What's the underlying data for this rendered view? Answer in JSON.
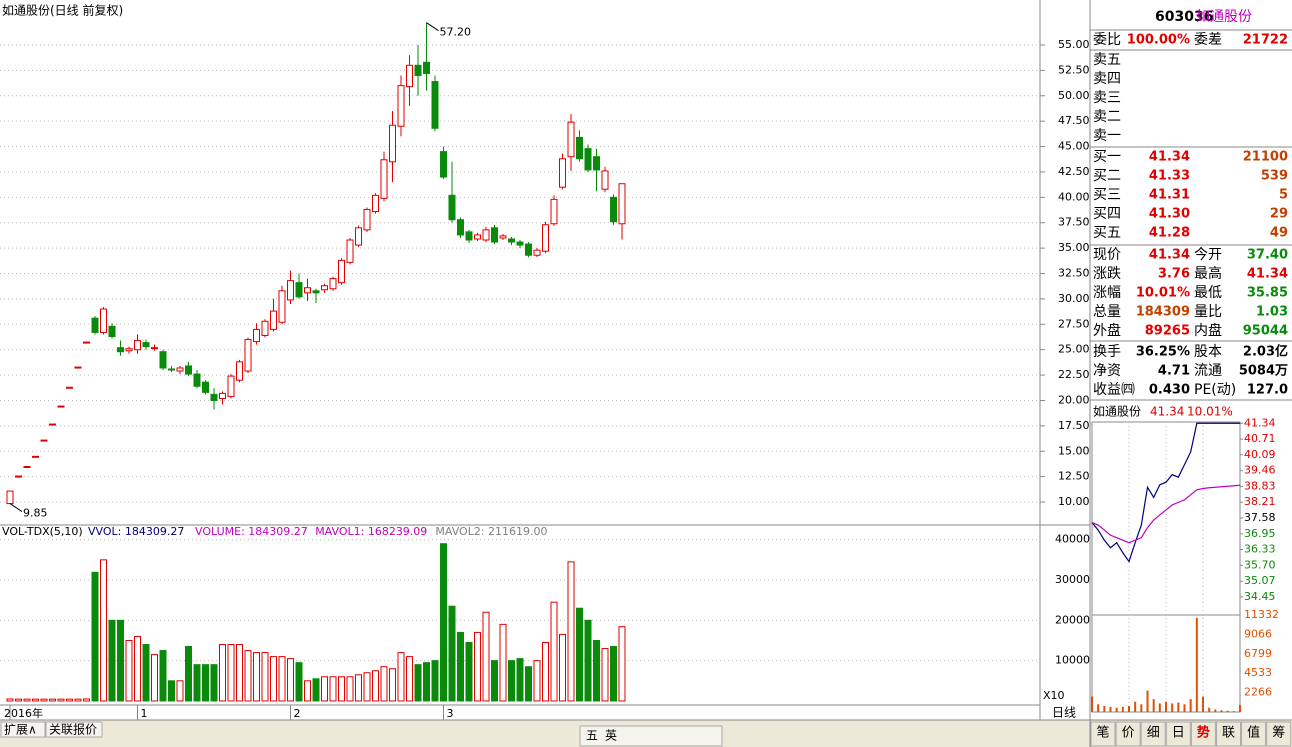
{
  "header": {
    "title": "如通股份(日线 前复权)",
    "period_label": "日线"
  },
  "chart_data": [
    {
      "type": "candlestick",
      "categories": [
        "2016年",
        null,
        null,
        null,
        null,
        null,
        null,
        null,
        null,
        null,
        null,
        null,
        null,
        null,
        null,
        "1",
        null,
        null,
        null,
        null,
        null,
        null,
        null,
        null,
        null,
        null,
        null,
        null,
        null,
        null,
        null,
        null,
        null,
        "2",
        null,
        null,
        null,
        null,
        null,
        null,
        null,
        null,
        null,
        null,
        null,
        null,
        null,
        null,
        null,
        null,
        null,
        "3",
        null,
        null,
        null,
        null,
        null,
        null,
        null,
        null,
        null,
        null,
        null,
        null,
        null,
        null,
        null,
        null,
        null,
        null,
        null,
        null,
        null
      ],
      "open": [
        9.85,
        12.56,
        13.5,
        14.5,
        16.1,
        17.68,
        19.45,
        21.3,
        23.29,
        25.75,
        28.1,
        26.7,
        27.3,
        25.2,
        24.9,
        25.0,
        25.7,
        25.2,
        24.8,
        23.1,
        22.9,
        23.4,
        22.6,
        21.8,
        20.6,
        20.2,
        20.4,
        22.0,
        22.9,
        25.8,
        26.4,
        27.0,
        27.7,
        29.9,
        31.6,
        30.6,
        30.8,
        30.9,
        31.0,
        31.6,
        33.6,
        35.3,
        36.8,
        38.6,
        39.9,
        43.5,
        47.0,
        50.9,
        53.0,
        53.3,
        51.4,
        44.5,
        40.2,
        37.8,
        36.6,
        35.9,
        35.8,
        37.0,
        36.0,
        35.9,
        35.6,
        35.4,
        34.3,
        34.7,
        37.4,
        41.0,
        44.0,
        45.9,
        44.8,
        44.0,
        40.8,
        40.0,
        37.4
      ],
      "high": [
        11.08,
        12.56,
        13.5,
        14.5,
        16.1,
        17.68,
        19.45,
        21.3,
        23.29,
        25.75,
        28.3,
        29.2,
        27.6,
        25.9,
        25.3,
        26.5,
        26.0,
        25.5,
        25.0,
        23.4,
        23.4,
        23.8,
        23.0,
        22.0,
        21.2,
        20.9,
        22.6,
        24.0,
        26.2,
        27.6,
        28.0,
        30.0,
        31.3,
        32.8,
        32.5,
        32.0,
        31.0,
        31.5,
        32.2,
        34.0,
        36.0,
        37.2,
        39.0,
        40.4,
        44.5,
        48.5,
        52.0,
        54.0,
        55.0,
        57.2,
        52.0,
        45.0,
        43.5,
        38.0,
        36.8,
        36.5,
        37.1,
        37.3,
        36.4,
        36.1,
        35.8,
        35.6,
        35.0,
        37.6,
        40.2,
        44.3,
        48.2,
        46.6,
        45.2,
        44.8,
        43.0,
        40.3,
        41.34
      ],
      "low": [
        9.85,
        12.56,
        13.5,
        14.5,
        16.1,
        17.68,
        19.45,
        21.3,
        23.29,
        25.75,
        26.5,
        26.5,
        26.1,
        24.4,
        24.6,
        24.6,
        25.0,
        24.9,
        23.0,
        22.8,
        22.6,
        22.4,
        21.2,
        20.6,
        19.1,
        19.6,
        20.2,
        21.8,
        22.7,
        25.5,
        26.2,
        26.8,
        27.5,
        29.5,
        30.0,
        29.8,
        29.6,
        30.6,
        30.8,
        31.4,
        33.4,
        35.1,
        36.6,
        38.4,
        39.6,
        41.5,
        46.0,
        49.0,
        50.0,
        50.5,
        46.5,
        41.8,
        37.5,
        36.0,
        35.5,
        35.7,
        35.6,
        35.4,
        35.8,
        35.3,
        35.0,
        34.1,
        34.1,
        34.5,
        37.2,
        40.8,
        42.6,
        43.5,
        42.5,
        40.6,
        40.5,
        37.3,
        35.85
      ],
      "close": [
        11.08,
        12.56,
        13.5,
        14.5,
        16.1,
        17.68,
        19.45,
        21.3,
        23.29,
        25.75,
        26.7,
        29.0,
        26.3,
        24.8,
        25.1,
        25.9,
        25.3,
        25.2,
        23.2,
        23.0,
        23.2,
        22.6,
        21.4,
        20.8,
        20.0,
        20.7,
        22.4,
        23.8,
        26.0,
        27.0,
        27.8,
        28.8,
        30.8,
        31.8,
        30.2,
        31.1,
        30.6,
        31.3,
        32.0,
        33.8,
        35.8,
        37.0,
        38.8,
        40.2,
        43.7,
        47.1,
        51.0,
        53.0,
        52.0,
        52.2,
        46.8,
        42.0,
        37.8,
        36.3,
        35.8,
        36.3,
        36.8,
        35.6,
        36.2,
        35.6,
        35.3,
        34.3,
        34.8,
        37.3,
        39.8,
        43.8,
        47.4,
        43.8,
        42.7,
        42.7,
        42.6,
        37.6,
        41.34
      ],
      "up_color": "#e00000",
      "down_color": "#0a8a0a",
      "grid": true,
      "ylim": [
        7.74,
        59.43
      ],
      "yticks": [
        {
          "value": 10,
          "label": "10.00"
        },
        {
          "value": 12.5,
          "label": "12.50"
        },
        {
          "value": 15,
          "label": "15.00"
        },
        {
          "value": 17.5,
          "label": "17.50"
        },
        {
          "value": 20,
          "label": "20.00"
        },
        {
          "value": 22.5,
          "label": "22.50"
        },
        {
          "value": 25,
          "label": "25.00"
        },
        {
          "value": 27.5,
          "label": "27.50"
        },
        {
          "value": 30,
          "label": "30.00"
        },
        {
          "value": 32.5,
          "label": "32.50"
        },
        {
          "value": 35,
          "label": "35.00"
        },
        {
          "value": 37.5,
          "label": "37.50"
        },
        {
          "value": 40,
          "label": "40.00"
        },
        {
          "value": 42.5,
          "label": "42.50"
        },
        {
          "value": 45,
          "label": "45.00"
        },
        {
          "value": 47.5,
          "label": "47.50"
        },
        {
          "value": 50,
          "label": "50.00"
        },
        {
          "value": 52.5,
          "label": "52.50"
        },
        {
          "value": 55,
          "label": "55.00"
        }
      ],
      "annotations": [
        {
          "value": 57.2,
          "label": "57.20"
        },
        {
          "value": 9.85,
          "label": "9.85"
        }
      ]
    },
    {
      "type": "bar",
      "title": "VOL-TDX(5,10)",
      "legend": [
        {
          "text": "VVOL: 184309.27",
          "color": "#000080"
        },
        {
          "text": "VOLUME: 184309.27",
          "color": "#c000c0"
        },
        {
          "text": "MAVOL1: 168239.09",
          "color": "#c000c0"
        },
        {
          "text": "MAVOL2: 211619.00",
          "color": "#808080"
        }
      ],
      "values": [
        500,
        450,
        450,
        450,
        450,
        450,
        450,
        450,
        450,
        500,
        31900,
        35000,
        20000,
        20000,
        15000,
        16000,
        14000,
        11500,
        12500,
        5000,
        5000,
        13500,
        9000,
        9000,
        9000,
        14000,
        14000,
        14000,
        12500,
        12000,
        12000,
        11000,
        11000,
        10500,
        9500,
        5000,
        5500,
        6000,
        6000,
        6000,
        6000,
        6500,
        7000,
        7500,
        8500,
        8000,
        12000,
        11000,
        9000,
        9500,
        10000,
        39000,
        23500,
        17000,
        14500,
        17000,
        22000,
        10000,
        19000,
        10000,
        10500,
        8500,
        10000,
        14500,
        24500,
        16500,
        34500,
        23000,
        20000,
        15000,
        13000,
        13500,
        18430.9
      ],
      "ylim": [
        -1000,
        43640
      ],
      "yticks": [
        10000,
        20000,
        30000,
        40000
      ],
      "unit_label": "X10"
    },
    {
      "type": "line",
      "title": "如通股份",
      "price_label": "41.34",
      "change_label": "10.01%",
      "series": [
        {
          "color": "#000080",
          "values": [
            37.4,
            37.1,
            36.7,
            36.4,
            36.6,
            36.2,
            35.85,
            36.6,
            37.3,
            38.8,
            38.4,
            38.9,
            39.0,
            39.3,
            39.2,
            39.7,
            40.2,
            41.34,
            41.34,
            41.34,
            41.34,
            41.34,
            41.34,
            41.34,
            41.34
          ]
        },
        {
          "color": "#c000c0",
          "values": [
            37.4,
            37.3,
            37.1,
            36.9,
            36.8,
            36.7,
            36.6,
            36.7,
            36.8,
            37.2,
            37.5,
            37.7,
            37.9,
            38.1,
            38.2,
            38.3,
            38.5,
            38.7,
            38.75,
            38.78,
            38.8,
            38.82,
            38.84,
            38.86,
            38.88
          ]
        }
      ],
      "ylim": [
        33.73,
        41.39
      ],
      "yticks": [
        41.34,
        40.71,
        40.09,
        39.46,
        38.83,
        38.21,
        37.58,
        36.95,
        36.33,
        {
          "value": 35.7,
          "label": "35.70"
        },
        35.07,
        34.45
      ],
      "volume": {
        "color": "#e05000",
        "values": [
          1800,
          900,
          700,
          600,
          500,
          600,
          700,
          1200,
          900,
          2500,
          1500,
          1000,
          1200,
          1000,
          1100,
          900,
          1500,
          11000,
          1800,
          500,
          300,
          200,
          150,
          100,
          800
        ],
        "ylim": [
          0,
          11332
        ],
        "yticks": [
          11332,
          9066,
          6799,
          4533,
          2266
        ]
      }
    }
  ],
  "quote": {
    "code": "603036",
    "name": "如通股份",
    "ratio": {
      "label": "委比",
      "value": "100.00%",
      "diff_label": "委差",
      "diff": "21722"
    },
    "sell": [
      "卖五",
      "卖四",
      "卖三",
      "卖二",
      "卖一"
    ],
    "buy": [
      {
        "label": "买一",
        "price": "41.34",
        "volume": "21100"
      },
      {
        "label": "买二",
        "price": "41.33",
        "volume": "539"
      },
      {
        "label": "买三",
        "price": "41.31",
        "volume": "5"
      },
      {
        "label": "买四",
        "price": "41.30",
        "volume": "29"
      },
      {
        "label": "买五",
        "price": "41.28",
        "volume": "49"
      }
    ],
    "stats": [
      [
        {
          "label": "现价",
          "value": "41.34",
          "color": "#e00000"
        },
        {
          "label": "今开",
          "value": "37.40",
          "color": "#0a8a0a"
        }
      ],
      [
        {
          "label": "涨跌",
          "value": "3.76",
          "color": "#e00000"
        },
        {
          "label": "最高",
          "value": "41.34",
          "color": "#e00000"
        }
      ],
      [
        {
          "label": "涨幅",
          "value": "10.01%",
          "color": "#e00000"
        },
        {
          "label": "最低",
          "value": "35.85",
          "color": "#0a8a0a"
        }
      ],
      [
        {
          "label": "总量",
          "value": "184309",
          "color": "#c04000"
        },
        {
          "label": "量比",
          "value": "1.03",
          "color": "#0a8a0a"
        }
      ],
      [
        {
          "label": "外盘",
          "value": "89265",
          "color": "#e00000"
        },
        {
          "label": "内盘",
          "value": "95044",
          "color": "#0a8a0a"
        }
      ]
    ],
    "stats2": [
      [
        {
          "label": "换手",
          "value": "36.25%"
        },
        {
          "label": "股本",
          "value": "2.03亿"
        }
      ],
      [
        {
          "label": "净资",
          "value": "4.71"
        },
        {
          "label": "流通",
          "value": "5084万"
        }
      ],
      [
        {
          "label": "收益㈣",
          "value": "0.430"
        },
        {
          "label": "PE(动)",
          "value": "127.0"
        }
      ]
    ]
  },
  "footer": {
    "left": [
      "扩展∧",
      "关联报价"
    ],
    "ime": [
      "五",
      "英"
    ],
    "tabs": [
      "笔",
      "价",
      "细",
      "日",
      "势",
      "联",
      "值",
      "筹"
    ],
    "active_tab": "势"
  }
}
